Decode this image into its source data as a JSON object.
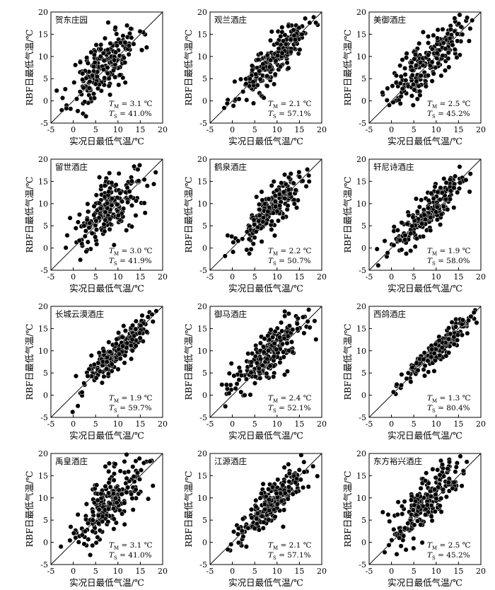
{
  "chart_data": [
    {
      "type": "scatter",
      "title": "贺东庄园",
      "xlabel": "实况日最低气温/℃",
      "ylabel": "RBF日最低气温/℃",
      "xlim": [
        -5,
        20
      ],
      "ylim": [
        -5,
        20
      ],
      "xticks": [
        -5,
        0,
        5,
        10,
        15,
        20
      ],
      "yticks": [
        -5,
        0,
        5,
        10,
        15,
        20
      ],
      "diagonal": true,
      "stats": {
        "tm_value": "= 3.1 ℃",
        "ts_value": "= 41.0%"
      },
      "points": {
        "count": 220,
        "center": [
          7,
          8
        ],
        "spread": [
          3.8,
          4.5
        ],
        "corr": 0.68,
        "seed": 11
      }
    },
    {
      "type": "scatter",
      "title": "观兰酒庄",
      "xlabel": "实况日最低气温/℃",
      "ylabel": "RBF日最低气温/℃",
      "xlim": [
        -5,
        20
      ],
      "ylim": [
        -5,
        20
      ],
      "xticks": [
        -5,
        0,
        5,
        10,
        15,
        20
      ],
      "yticks": [
        -5,
        0,
        5,
        10,
        15,
        20
      ],
      "diagonal": true,
      "stats": {
        "tm_value": "= 2.1 ℃",
        "ts_value": "= 57.1%"
      },
      "points": {
        "count": 220,
        "center": [
          9,
          9
        ],
        "spread": [
          4.0,
          4.3
        ],
        "corr": 0.86,
        "seed": 23
      }
    },
    {
      "type": "scatter",
      "title": "美御酒庄",
      "xlabel": "实况日最低气温/℃",
      "ylabel": "RBF日最低气温/℃",
      "xlim": [
        -5,
        20
      ],
      "ylim": [
        -5,
        20
      ],
      "xticks": [
        -5,
        0,
        5,
        10,
        15,
        20
      ],
      "yticks": [
        -5,
        0,
        5,
        10,
        15,
        20
      ],
      "diagonal": true,
      "stats": {
        "tm_value": "= 2.5 ℃",
        "ts_value": "= 45.2%"
      },
      "points": {
        "count": 220,
        "center": [
          8,
          9
        ],
        "spread": [
          4.2,
          4.8
        ],
        "corr": 0.78,
        "seed": 37
      }
    },
    {
      "type": "scatter",
      "title": "留世酒庄",
      "xlabel": "实况日最低气温/℃",
      "ylabel": "RBF日最低气温/℃",
      "xlim": [
        -5,
        20
      ],
      "ylim": [
        -5,
        20
      ],
      "xticks": [
        -5,
        0,
        5,
        10,
        15,
        20
      ],
      "yticks": [
        -5,
        0,
        5,
        10,
        15,
        20
      ],
      "diagonal": true,
      "stats": {
        "tm_value": "= 3.0 ℃",
        "ts_value": "= 41.9%"
      },
      "points": {
        "count": 220,
        "center": [
          8,
          9
        ],
        "spread": [
          4.0,
          4.5
        ],
        "corr": 0.7,
        "seed": 41
      }
    },
    {
      "type": "scatter",
      "title": "鹤泉酒庄",
      "xlabel": "实况日最低气温/℃",
      "ylabel": "RBF日最低气温/℃",
      "xlim": [
        -5,
        20
      ],
      "ylim": [
        -5,
        20
      ],
      "xticks": [
        -5,
        0,
        5,
        10,
        15,
        20
      ],
      "yticks": [
        -5,
        0,
        5,
        10,
        15,
        20
      ],
      "diagonal": true,
      "stats": {
        "tm_value": "= 2.2 ℃",
        "ts_value": "= 50.7%"
      },
      "points": {
        "count": 220,
        "center": [
          9,
          9
        ],
        "spread": [
          4.0,
          4.3
        ],
        "corr": 0.84,
        "seed": 53
      }
    },
    {
      "type": "scatter",
      "title": "轩尼诗酒庄",
      "xlabel": "实况日最低气温/℃",
      "ylabel": "RBF日最低气温/℃",
      "xlim": [
        -5,
        20
      ],
      "ylim": [
        -5,
        20
      ],
      "xticks": [
        -5,
        0,
        5,
        10,
        15,
        20
      ],
      "yticks": [
        -5,
        0,
        5,
        10,
        15,
        20
      ],
      "diagonal": true,
      "stats": {
        "tm_value": "= 1.9 ℃",
        "ts_value": "= 58.0%"
      },
      "points": {
        "count": 220,
        "center": [
          8,
          8
        ],
        "spread": [
          4.3,
          4.6
        ],
        "corr": 0.88,
        "seed": 61
      }
    },
    {
      "type": "scatter",
      "title": "长城云漠酒庄",
      "xlabel": "实况日最低气温/℃",
      "ylabel": "RBF日最低气温/℃",
      "xlim": [
        -5,
        20
      ],
      "ylim": [
        -5,
        20
      ],
      "xticks": [
        -5,
        0,
        5,
        10,
        15,
        20
      ],
      "yticks": [
        -5,
        0,
        5,
        10,
        15,
        20
      ],
      "diagonal": true,
      "stats": {
        "tm_value": "= 1.9 ℃",
        "ts_value": "= 59.7%"
      },
      "points": {
        "count": 220,
        "center": [
          10,
          10
        ],
        "spread": [
          4.2,
          4.4
        ],
        "corr": 0.9,
        "seed": 71
      }
    },
    {
      "type": "scatter",
      "title": "御马酒庄",
      "xlabel": "实况日最低气温/℃",
      "ylabel": "RBF日最低气温/℃",
      "xlim": [
        -5,
        20
      ],
      "ylim": [
        -5,
        20
      ],
      "xticks": [
        -5,
        0,
        5,
        10,
        15,
        20
      ],
      "yticks": [
        -5,
        0,
        5,
        10,
        15,
        20
      ],
      "diagonal": true,
      "stats": {
        "tm_value": "= 2.4 ℃",
        "ts_value": "= 52.1%"
      },
      "points": {
        "count": 220,
        "center": [
          8,
          9
        ],
        "spread": [
          4.5,
          4.8
        ],
        "corr": 0.82,
        "seed": 83
      }
    },
    {
      "type": "scatter",
      "title": "西鸽酒庄",
      "xlabel": "实况日最低气温/℃",
      "ylabel": "RBF日最低气温/℃",
      "xlim": [
        -5,
        20
      ],
      "ylim": [
        -5,
        20
      ],
      "xticks": [
        -5,
        0,
        5,
        10,
        15,
        20
      ],
      "yticks": [
        -5,
        0,
        5,
        10,
        15,
        20
      ],
      "diagonal": true,
      "stats": {
        "tm_value": "= 1.3 ℃",
        "ts_value": "= 80.4%"
      },
      "points": {
        "count": 220,
        "center": [
          10,
          10
        ],
        "spread": [
          4.5,
          4.5
        ],
        "corr": 0.95,
        "seed": 97
      }
    },
    {
      "type": "scatter",
      "title": "禹皇酒庄",
      "xlabel": "实况日最低气温/℃",
      "ylabel": "RBF日最低气温/℃",
      "xlim": [
        -5,
        20
      ],
      "ylim": [
        -5,
        20
      ],
      "xticks": [
        -5,
        0,
        5,
        10,
        15,
        20
      ],
      "yticks": [
        -5,
        0,
        5,
        10,
        15,
        20
      ],
      "diagonal": true,
      "stats": {
        "tm_value": "= 3.1 ℃",
        "ts_value": "= 41.0%"
      },
      "points": {
        "count": 220,
        "center": [
          8,
          9
        ],
        "spread": [
          4.0,
          4.5
        ],
        "corr": 0.68,
        "seed": 103
      }
    },
    {
      "type": "scatter",
      "title": "江源酒庄",
      "xlabel": "实况日最低气温/℃",
      "ylabel": "RBF日最低气温/℃",
      "xlim": [
        -5,
        20
      ],
      "ylim": [
        -5,
        20
      ],
      "xticks": [
        -5,
        0,
        5,
        10,
        15,
        20
      ],
      "yticks": [
        -5,
        0,
        5,
        10,
        15,
        20
      ],
      "diagonal": true,
      "stats": {
        "tm_value": "= 2.1 ℃",
        "ts_value": "= 57.1%"
      },
      "points": {
        "count": 220,
        "center": [
          9,
          9
        ],
        "spread": [
          4.0,
          4.3
        ],
        "corr": 0.86,
        "seed": 113
      }
    },
    {
      "type": "scatter",
      "title": "东方裕兴酒庄",
      "xlabel": "实况日最低气温/℃",
      "ylabel": "RBF日最低气温/℃",
      "xlim": [
        -5,
        20
      ],
      "ylim": [
        -5,
        20
      ],
      "xticks": [
        -5,
        0,
        5,
        10,
        15,
        20
      ],
      "yticks": [
        -5,
        0,
        5,
        10,
        15,
        20
      ],
      "diagonal": true,
      "stats": {
        "tm_value": "= 2.5 ℃",
        "ts_value": "= 45.2%"
      },
      "points": {
        "count": 220,
        "center": [
          8,
          9
        ],
        "spread": [
          4.2,
          4.8
        ],
        "corr": 0.78,
        "seed": 127
      }
    }
  ]
}
